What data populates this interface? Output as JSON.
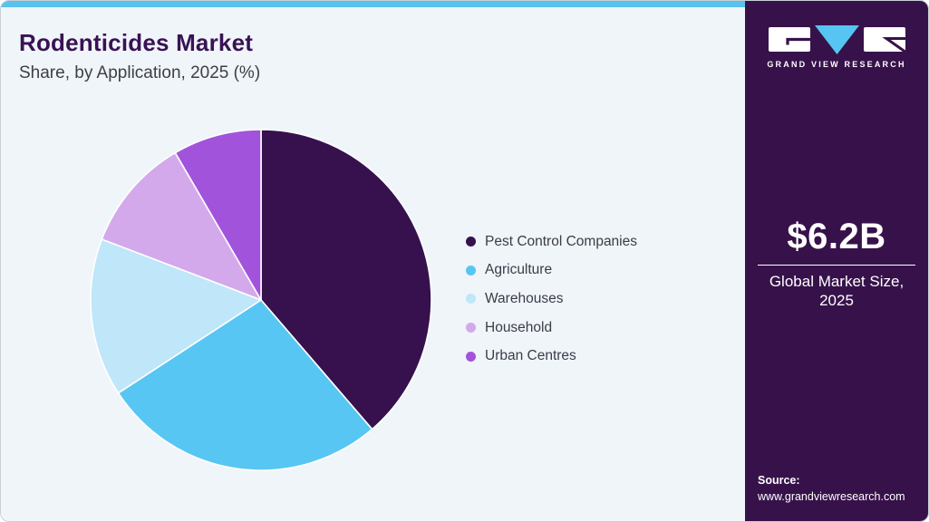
{
  "header": {
    "title": "Rodenticides Market",
    "subtitle": "Share, by Application, 2025 (%)"
  },
  "chart_data": {
    "type": "pie",
    "title": "Rodenticides Market Share, by Application, 2025 (%)",
    "categories": [
      "Pest Control Companies",
      "Agriculture",
      "Warehouses",
      "Household",
      "Urban Centres"
    ],
    "values": [
      38.7,
      27.1,
      15.0,
      10.8,
      8.4
    ],
    "colors": [
      "#36114d",
      "#58c6f2",
      "#bfe6f9",
      "#d4a9ec",
      "#a253dc"
    ],
    "start_angle_deg": 0,
    "direction": "clockwise",
    "legend_position": "right",
    "data_labels": false
  },
  "sidebar": {
    "logo_wordmark": "GRAND VIEW RESEARCH",
    "market_size_value": "$6.2B",
    "market_size_caption": "Global Market Size, 2025",
    "source_label": "Source:",
    "source_url": "www.grandviewresearch.com"
  },
  "colors": {
    "topbar_accent": "#5bc2ec",
    "panel_background": "#eff5f9",
    "sidebar_background": "#37124a",
    "title_text": "#3a1253",
    "subtitle_text": "#3f3f46",
    "legend_text": "#3d3b49",
    "logo_triangle": "#56c5f1",
    "slice_separator": "#ffffff"
  }
}
